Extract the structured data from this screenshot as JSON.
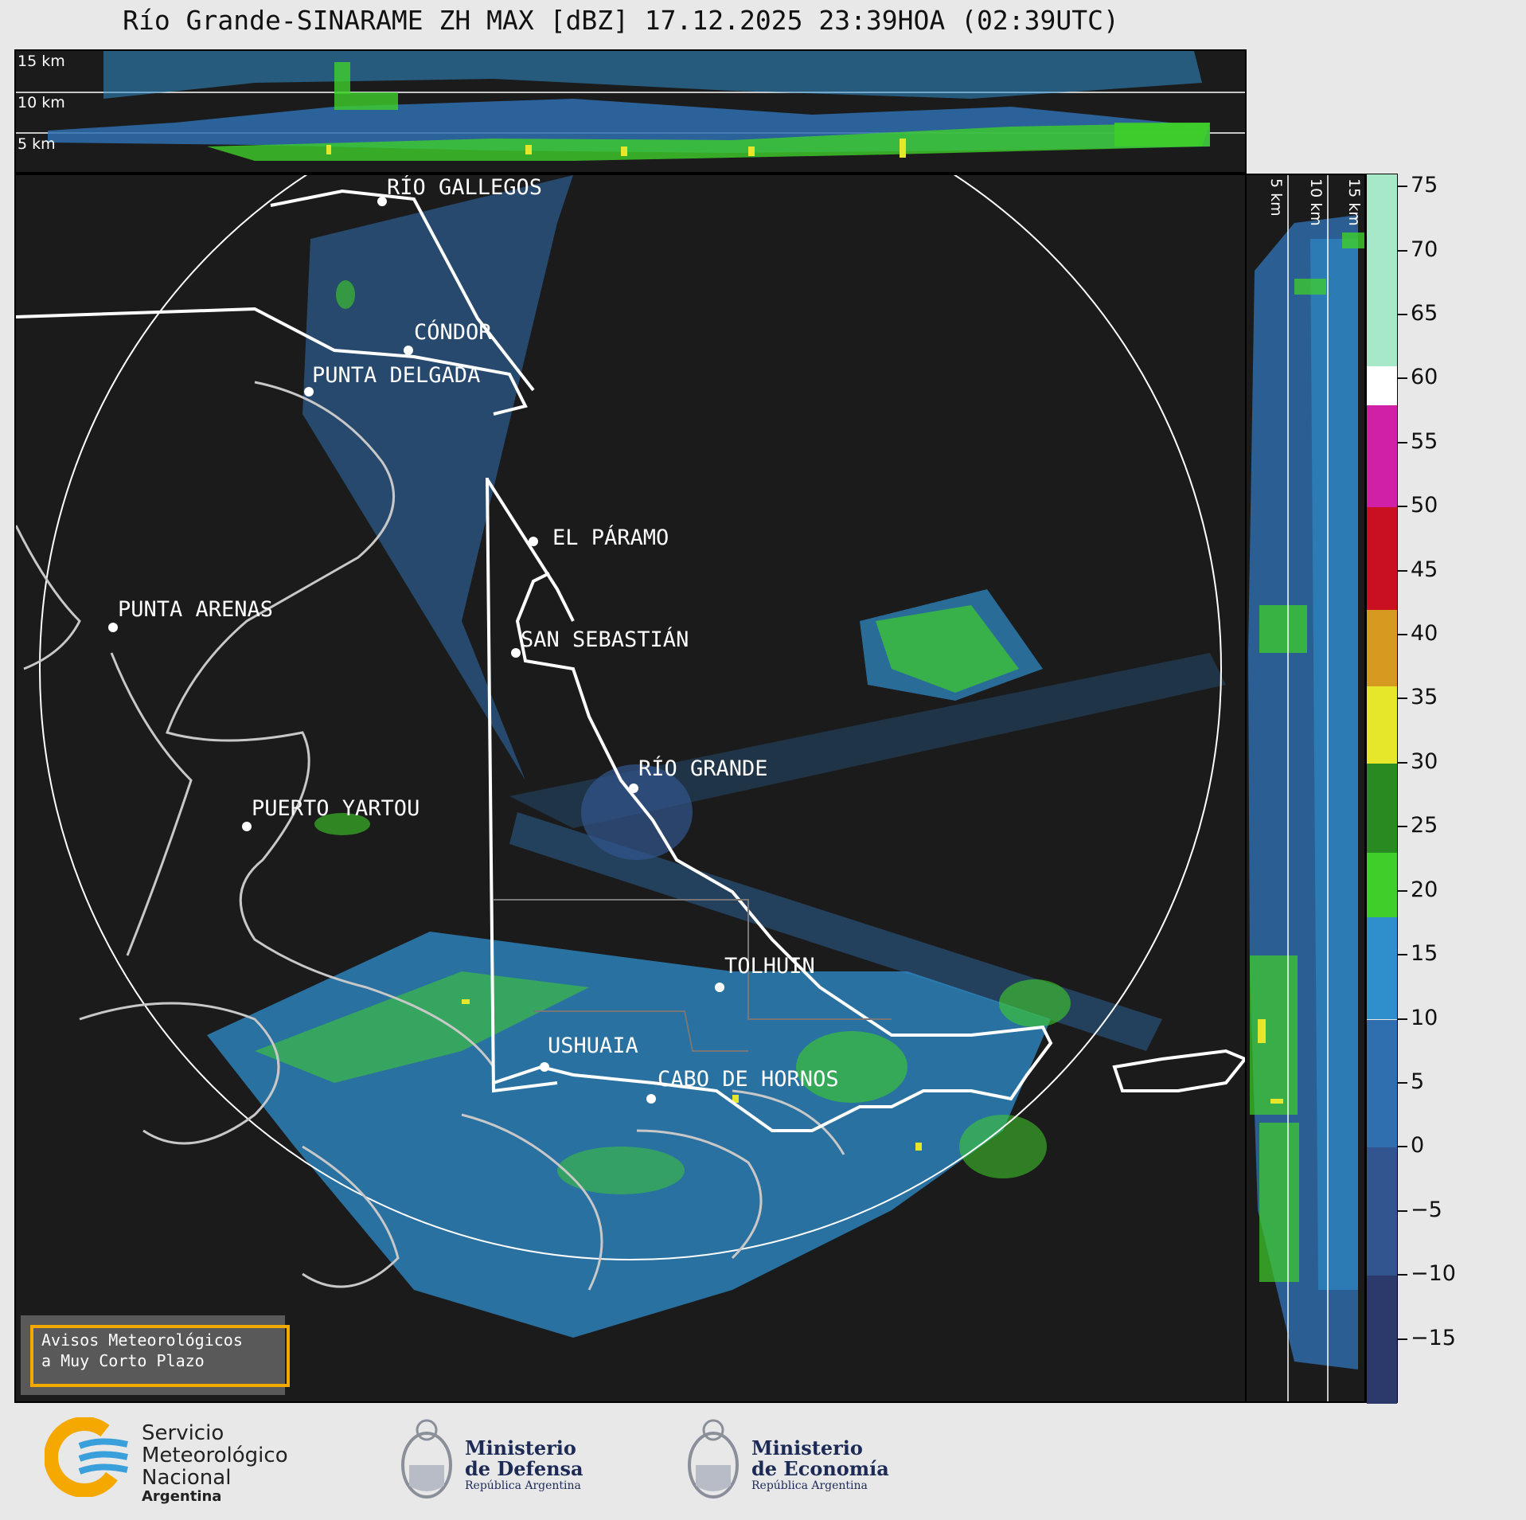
{
  "title": "Río Grande-SINARAME ZH MAX [dBZ] 17.12.2025 23:39HOA (02:39UTC)",
  "top_panel": {
    "height_labels": [
      "15 km",
      "10 km",
      "5 km"
    ]
  },
  "right_panel": {
    "height_labels": [
      "5 km",
      "10 km",
      "15 km"
    ]
  },
  "map": {
    "places": [
      {
        "name": "RÍO GALLEGOS"
      },
      {
        "name": "CÓNDOR"
      },
      {
        "name": "PUNTA DELGADA"
      },
      {
        "name": "EL PÁRAMO"
      },
      {
        "name": "PUNTA ARENAS"
      },
      {
        "name": "SAN SEBASTIÁN"
      },
      {
        "name": "RÍO GRANDE"
      },
      {
        "name": "PUERTO YARTOU"
      },
      {
        "name": "TOLHUIN"
      },
      {
        "name": "USHUAIA"
      },
      {
        "name": "CABO DE HORNOS"
      }
    ]
  },
  "colorbar": {
    "unit": "dBZ",
    "min": -20,
    "max": 76,
    "ticks": [
      "75",
      "70",
      "65",
      "60",
      "55",
      "50",
      "45",
      "40",
      "35",
      "30",
      "25",
      "20",
      "15",
      "10",
      "5",
      "0",
      "−5",
      "−10",
      "−15"
    ],
    "tick_values": [
      75,
      70,
      65,
      60,
      55,
      50,
      45,
      40,
      35,
      30,
      25,
      20,
      15,
      10,
      5,
      0,
      -5,
      -10,
      -15
    ],
    "bands": [
      {
        "from": -20,
        "to": -10,
        "color": "#2b3a6a"
      },
      {
        "from": -10,
        "to": 0,
        "color": "#32558f"
      },
      {
        "from": 0,
        "to": 10,
        "color": "#2f6fb0"
      },
      {
        "from": 10,
        "to": 18,
        "color": "#2f8fcd"
      },
      {
        "from": 18,
        "to": 23,
        "color": "#3fcf2a"
      },
      {
        "from": 23,
        "to": 30,
        "color": "#2a8a22"
      },
      {
        "from": 30,
        "to": 36,
        "color": "#e6e62a"
      },
      {
        "from": 36,
        "to": 42,
        "color": "#d69a20"
      },
      {
        "from": 42,
        "to": 50,
        "color": "#c81020"
      },
      {
        "from": 50,
        "to": 58,
        "color": "#d020a8"
      },
      {
        "from": 58,
        "to": 61,
        "color": "#ffffff"
      },
      {
        "from": 61,
        "to": 76,
        "color": "#a6e8c8"
      }
    ]
  },
  "aviso": {
    "line1": "Avisos Meteorológicos",
    "line2": "a Muy Corto Plazo"
  },
  "logos": {
    "smn": {
      "line1": "Servicio",
      "line2": "Meteorológico",
      "line3": "Nacional",
      "line4": "Argentina"
    },
    "defensa": {
      "line1": "Ministerio",
      "line2": "de Defensa",
      "line3": "República Argentina"
    },
    "economia": {
      "line1": "Ministerio",
      "line2": "de Economía",
      "line3": "República Argentina"
    }
  },
  "colors": {
    "echo_blue": "#2f8fcd",
    "echo_green": "#3fcf2a",
    "echo_yellow": "#e6e62a",
    "panel_bg": "#1b1b1b",
    "aviso_border": "#f2a900"
  }
}
